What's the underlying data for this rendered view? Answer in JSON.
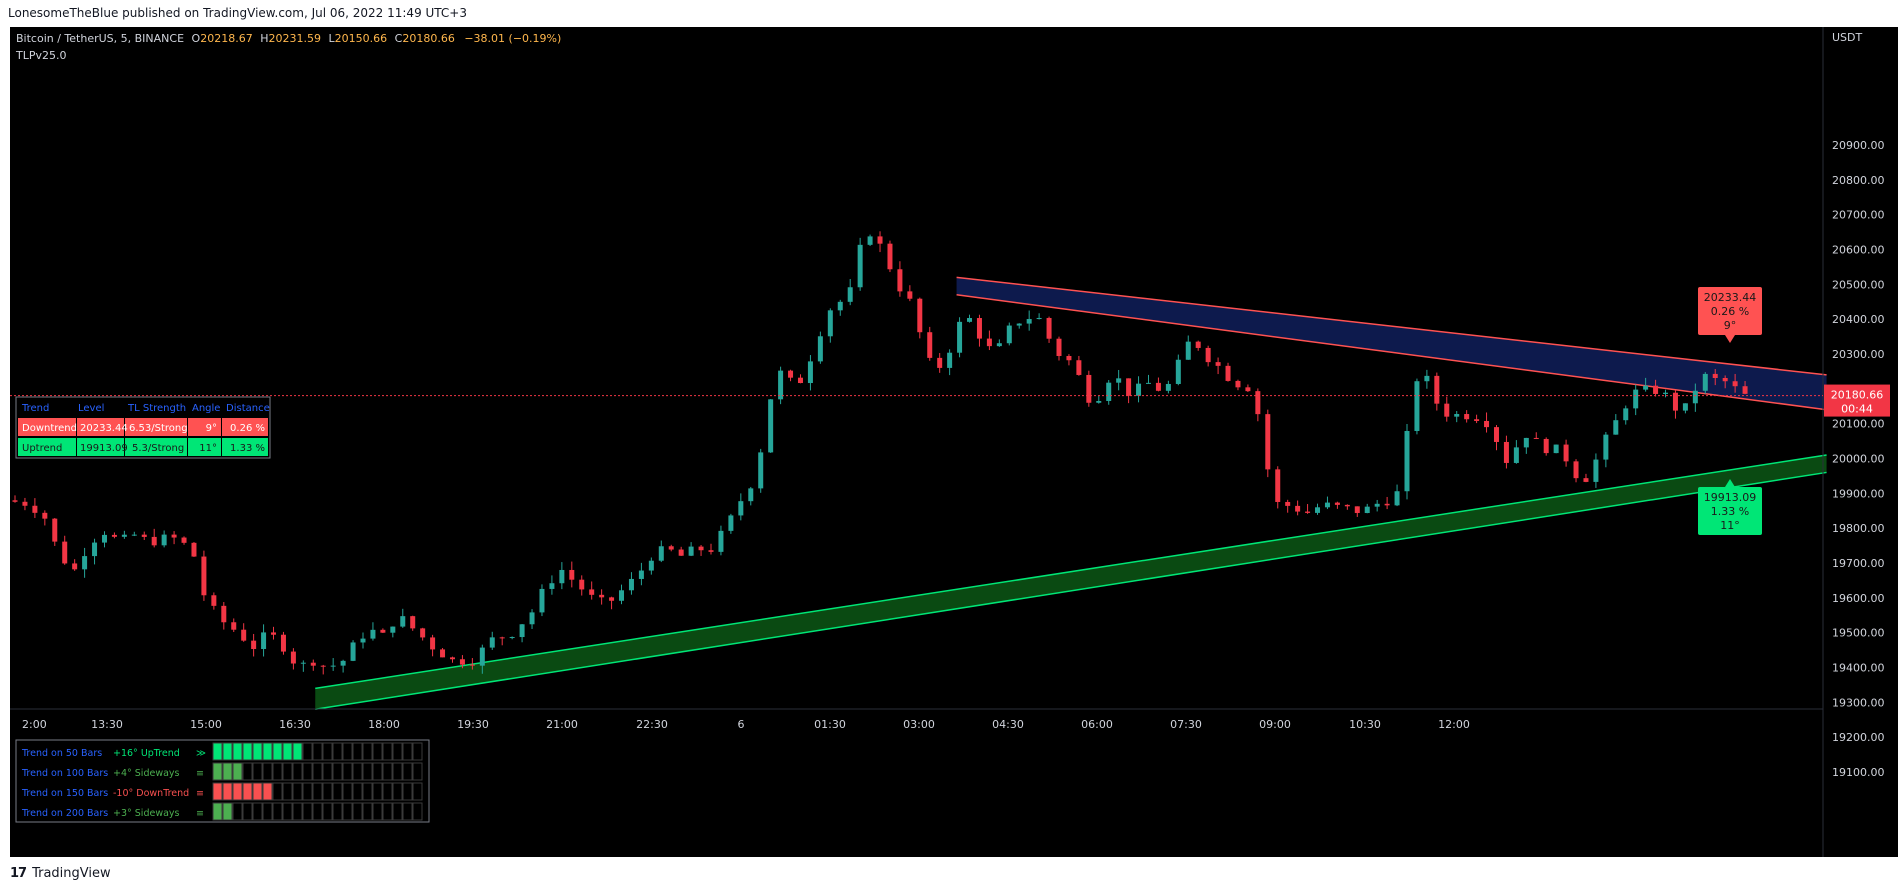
{
  "publisher": "LonesomeTheBlue published on TradingView.com, Jul 06, 2022 11:49 UTC+3",
  "footer_brand": "TradingView",
  "header": {
    "symbol": "Bitcoin / TetherUS, 5, BINANCE",
    "open_label": "O",
    "open": "20218.67",
    "high_label": "H",
    "high": "20231.59",
    "low_label": "L",
    "low": "20150.66",
    "close_label": "C",
    "close": "20180.66",
    "change": "−38.01 (−0.19%)",
    "indicator": "TLPv25.0"
  },
  "price_axis": {
    "currency": "USDT",
    "ticks": [
      "20900.00",
      "20800.00",
      "20700.00",
      "20600.00",
      "20500.00",
      "20400.00",
      "20300.00",
      "20100.00",
      "20000.00",
      "19900.00",
      "19800.00",
      "19700.00",
      "19600.00",
      "19500.00",
      "19400.00",
      "19300.00",
      "19200.00",
      "19100.00"
    ],
    "last_price_label": "20180.66",
    "countdown": "00:44"
  },
  "time_axis": {
    "ticks": [
      "2:00",
      "13:30",
      "15:00",
      "16:30",
      "18:00",
      "19:30",
      "21:00",
      "22:30",
      "6",
      "01:30",
      "03:00",
      "04:30",
      "06:00",
      "07:30",
      "09:00",
      "10:30",
      "12:00"
    ]
  },
  "trend_table": {
    "headers": [
      "Trend",
      "Level",
      "TL Strength",
      "Angle",
      "Distance"
    ],
    "rows": [
      {
        "trend": "Downtrend",
        "level": "20233.44",
        "strength": "6.53/Strong",
        "angle": "9°",
        "distance": "0.26 %"
      },
      {
        "trend": "Uptrend",
        "level": "19913.09",
        "strength": "5.3/Strong",
        "angle": "11°",
        "distance": "1.33 %"
      }
    ]
  },
  "down_label": {
    "level": "20233.44",
    "pct": "0.26 %",
    "angle": "9°"
  },
  "up_label": {
    "level": "19913.09",
    "pct": "1.33 %",
    "angle": "11°"
  },
  "bars_table": {
    "rows": [
      {
        "name": "Trend on 50 Bars",
        "value": "+16° UpTrend",
        "symbol": "≫",
        "filled": 9,
        "color": "#00e676",
        "text_color": "#00e676"
      },
      {
        "name": "Trend on 100 Bars",
        "value": "+4° Sideways",
        "symbol": "≡",
        "filled": 3,
        "color": "#4caf50",
        "text_color": "#4caf50"
      },
      {
        "name": "Trend on 150 Bars",
        "value": "-10° DownTrend",
        "symbol": "≡",
        "filled": 6,
        "color": "#f85050",
        "text_color": "#f85050"
      },
      {
        "name": "Trend on 200 Bars",
        "value": "+3° Sideways",
        "symbol": "≡",
        "filled": 2,
        "color": "#4caf50",
        "text_color": "#4caf50"
      }
    ],
    "total_cells": 21
  },
  "colors": {
    "bull": "#089981",
    "bull_body": "#26a69a",
    "bear": "#f23645",
    "down_channel": "#ff5252",
    "down_fill": "#0d1a4d",
    "up_channel": "#00e676",
    "up_fill": "#0a4a12",
    "last_price": "#f23645"
  },
  "chart_data": {
    "type": "candlestick",
    "title": "Bitcoin / TetherUS, 5, BINANCE",
    "ylim": [
      19070,
      20990
    ],
    "y_ticks": [
      20900,
      20800,
      20700,
      20600,
      20500,
      20400,
      20300,
      20100,
      20000,
      19900,
      19800,
      19700,
      19600,
      19500,
      19400,
      19300,
      19200,
      19100
    ],
    "x_ticks": [
      "2:00",
      "13:30",
      "15:00",
      "16:30",
      "18:00",
      "19:30",
      "21:00",
      "22:30",
      "6",
      "01:30",
      "03:00",
      "04:30",
      "06:00",
      "07:30",
      "09:00",
      "10:30",
      "12:00"
    ],
    "last_price": 20180.66,
    "close_path": [
      [
        0,
        19880
      ],
      [
        10,
        19870
      ],
      [
        16,
        19830
      ],
      [
        22,
        19720
      ],
      [
        28,
        19680
      ],
      [
        34,
        19760
      ],
      [
        40,
        19790
      ],
      [
        46,
        19760
      ],
      [
        52,
        19780
      ],
      [
        58,
        19760
      ],
      [
        64,
        19770
      ],
      [
        70,
        19770
      ],
      [
        76,
        19720
      ],
      [
        80,
        19610
      ],
      [
        86,
        19540
      ],
      [
        92,
        19510
      ],
      [
        100,
        19460
      ],
      [
        106,
        19500
      ],
      [
        112,
        19460
      ],
      [
        118,
        19400
      ],
      [
        124,
        19420
      ],
      [
        130,
        19400
      ],
      [
        136,
        19420
      ],
      [
        140,
        19460
      ],
      [
        146,
        19510
      ],
      [
        152,
        19490
      ],
      [
        158,
        19550
      ],
      [
        166,
        19500
      ],
      [
        172,
        19460
      ],
      [
        180,
        19420
      ],
      [
        188,
        19420
      ],
      [
        196,
        19480
      ],
      [
        204,
        19500
      ],
      [
        212,
        19560
      ],
      [
        218,
        19640
      ],
      [
        224,
        19680
      ],
      [
        230,
        19640
      ],
      [
        236,
        19600
      ],
      [
        242,
        19580
      ],
      [
        248,
        19620
      ],
      [
        254,
        19660
      ],
      [
        260,
        19720
      ],
      [
        266,
        19740
      ],
      [
        272,
        19720
      ],
      [
        278,
        19740
      ],
      [
        284,
        19740
      ],
      [
        290,
        19800
      ],
      [
        296,
        19880
      ],
      [
        302,
        19950
      ],
      [
        306,
        20100
      ],
      [
        310,
        20250
      ],
      [
        314,
        20240
      ],
      [
        318,
        20200
      ],
      [
        322,
        20250
      ],
      [
        326,
        20330
      ],
      [
        330,
        20400
      ],
      [
        334,
        20460
      ],
      [
        338,
        20440
      ],
      [
        342,
        20520
      ],
      [
        346,
        20680
      ],
      [
        350,
        20620
      ],
      [
        354,
        20600
      ],
      [
        358,
        20500
      ],
      [
        362,
        20480
      ],
      [
        366,
        20420
      ],
      [
        370,
        20300
      ],
      [
        374,
        20250
      ],
      [
        378,
        20280
      ],
      [
        382,
        20350
      ],
      [
        386,
        20420
      ],
      [
        390,
        20380
      ],
      [
        394,
        20330
      ],
      [
        398,
        20300
      ],
      [
        402,
        20340
      ],
      [
        406,
        20400
      ],
      [
        410,
        20390
      ],
      [
        414,
        20420
      ],
      [
        418,
        20380
      ],
      [
        422,
        20310
      ],
      [
        426,
        20290
      ],
      [
        430,
        20270
      ],
      [
        434,
        20200
      ],
      [
        438,
        20150
      ],
      [
        442,
        20210
      ],
      [
        446,
        20250
      ],
      [
        450,
        20200
      ],
      [
        454,
        20180
      ],
      [
        458,
        20220
      ],
      [
        462,
        20210
      ],
      [
        466,
        20190
      ],
      [
        470,
        20230
      ],
      [
        474,
        20310
      ],
      [
        478,
        20350
      ],
      [
        482,
        20300
      ],
      [
        486,
        20280
      ],
      [
        490,
        20250
      ],
      [
        494,
        20220
      ],
      [
        498,
        20210
      ],
      [
        502,
        20200
      ],
      [
        506,
        20060
      ],
      [
        510,
        19880
      ],
      [
        514,
        19860
      ],
      [
        518,
        19870
      ],
      [
        522,
        19840
      ],
      [
        526,
        19850
      ],
      [
        530,
        19870
      ],
      [
        534,
        19860
      ],
      [
        538,
        19860
      ],
      [
        542,
        19850
      ],
      [
        546,
        19850
      ],
      [
        550,
        19860
      ],
      [
        554,
        19880
      ],
      [
        558,
        19880
      ],
      [
        562,
        19920
      ],
      [
        566,
        20210
      ],
      [
        570,
        20250
      ],
      [
        574,
        20200
      ],
      [
        578,
        20120
      ],
      [
        582,
        20140
      ],
      [
        586,
        20110
      ],
      [
        590,
        20140
      ],
      [
        594,
        20100
      ],
      [
        598,
        20110
      ],
      [
        602,
        20000
      ],
      [
        606,
        19990
      ],
      [
        610,
        20080
      ],
      [
        614,
        20060
      ],
      [
        618,
        20030
      ],
      [
        622,
        20030
      ],
      [
        626,
        20020
      ],
      [
        630,
        19980
      ],
      [
        634,
        19930
      ],
      [
        638,
        19960
      ],
      [
        642,
        20030
      ],
      [
        646,
        20080
      ],
      [
        650,
        20130
      ],
      [
        654,
        20180
      ],
      [
        658,
        20200
      ],
      [
        662,
        20190
      ],
      [
        666,
        20200
      ],
      [
        670,
        20160
      ],
      [
        674,
        20130
      ],
      [
        678,
        20160
      ],
      [
        682,
        20240
      ],
      [
        686,
        20230
      ],
      [
        690,
        20220
      ],
      [
        694,
        20220
      ],
      [
        698,
        20180
      ]
    ],
    "trendlines": [
      {
        "name": "Downtrend",
        "upper": [
          [
            380,
            20520
          ],
          [
            730,
            20240
          ]
        ],
        "lower": [
          [
            380,
            20470
          ],
          [
            730,
            20140
          ]
        ]
      },
      {
        "name": "Uptrend",
        "upper": [
          [
            122,
            19340
          ],
          [
            730,
            20010
          ]
        ],
        "lower": [
          [
            122,
            19280
          ],
          [
            730,
            19960
          ]
        ]
      }
    ]
  }
}
